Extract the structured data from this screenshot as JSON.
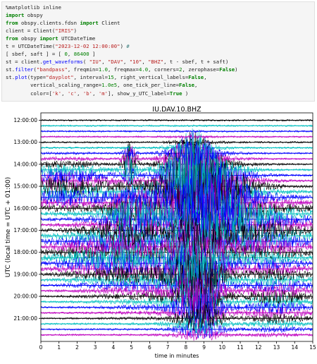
{
  "code_cell": {
    "lines": [
      [
        {
          "t": "plain",
          "v": "%matplotlib inline"
        }
      ],
      [
        {
          "t": "kw",
          "v": "import"
        },
        {
          "t": "plain",
          "v": " obspy"
        }
      ],
      [
        {
          "t": "kw",
          "v": "from"
        },
        {
          "t": "plain",
          "v": " obspy.clients.fdsn "
        },
        {
          "t": "kw",
          "v": "import"
        },
        {
          "t": "plain",
          "v": " Client"
        }
      ],
      [
        {
          "t": "plain",
          "v": "client = Client("
        },
        {
          "t": "str",
          "v": "\"IRIS\""
        },
        {
          "t": "plain",
          "v": ")"
        }
      ],
      [
        {
          "t": "kw",
          "v": "from"
        },
        {
          "t": "plain",
          "v": " obspy "
        },
        {
          "t": "kw",
          "v": "import"
        },
        {
          "t": "plain",
          "v": " UTCDateTime"
        }
      ],
      [
        {
          "t": "plain",
          "v": "t = UTCDateTime("
        },
        {
          "t": "str",
          "v": "\"2023-12-02 12:00:00\""
        },
        {
          "t": "plain",
          "v": ") "
        },
        {
          "t": "com",
          "v": "#"
        }
      ],
      [
        {
          "t": "plain",
          "v": "[ sbef, saft ] = [ "
        },
        {
          "t": "num",
          "v": "0"
        },
        {
          "t": "plain",
          "v": ", "
        },
        {
          "t": "num",
          "v": "86400"
        },
        {
          "t": "plain",
          "v": " ]"
        }
      ],
      [
        {
          "t": "plain",
          "v": "st = client."
        },
        {
          "t": "fn",
          "v": "get_waveforms"
        },
        {
          "t": "plain",
          "v": "( "
        },
        {
          "t": "str",
          "v": "\"IU\""
        },
        {
          "t": "plain",
          "v": ", "
        },
        {
          "t": "str",
          "v": "\"DAV\""
        },
        {
          "t": "plain",
          "v": ", "
        },
        {
          "t": "str",
          "v": "\"10\""
        },
        {
          "t": "plain",
          "v": ", "
        },
        {
          "t": "str",
          "v": "\"BHZ\""
        },
        {
          "t": "plain",
          "v": ", t - sbef, t + saft)"
        }
      ],
      [
        {
          "t": "plain",
          "v": "st."
        },
        {
          "t": "fn",
          "v": "filter"
        },
        {
          "t": "plain",
          "v": "("
        },
        {
          "t": "str",
          "v": "\"bandpass\""
        },
        {
          "t": "plain",
          "v": ", freqmin="
        },
        {
          "t": "num",
          "v": "1.0"
        },
        {
          "t": "plain",
          "v": ", freqmax="
        },
        {
          "t": "num",
          "v": "4.0"
        },
        {
          "t": "plain",
          "v": ", corners="
        },
        {
          "t": "num",
          "v": "2"
        },
        {
          "t": "plain",
          "v": ", zerophase="
        },
        {
          "t": "kw",
          "v": "False"
        },
        {
          "t": "plain",
          "v": ")"
        }
      ],
      [
        {
          "t": "plain",
          "v": "st."
        },
        {
          "t": "fn",
          "v": "plot"
        },
        {
          "t": "plain",
          "v": "(type="
        },
        {
          "t": "str",
          "v": "\"dayplot\""
        },
        {
          "t": "plain",
          "v": ", interval="
        },
        {
          "t": "num",
          "v": "15"
        },
        {
          "t": "plain",
          "v": ", right_vertical_labels="
        },
        {
          "t": "kw",
          "v": "False"
        },
        {
          "t": "plain",
          "v": ","
        }
      ],
      [
        {
          "t": "plain",
          "v": "        vertical_scaling_range="
        },
        {
          "t": "num",
          "v": "1.0e5"
        },
        {
          "t": "plain",
          "v": ", one_tick_per_line="
        },
        {
          "t": "kw",
          "v": "False"
        },
        {
          "t": "plain",
          "v": ","
        }
      ],
      [
        {
          "t": "plain",
          "v": "        color=["
        },
        {
          "t": "str",
          "v": "'k'"
        },
        {
          "t": "plain",
          "v": ", "
        },
        {
          "t": "str",
          "v": "'c'"
        },
        {
          "t": "plain",
          "v": ", "
        },
        {
          "t": "str",
          "v": "'b'"
        },
        {
          "t": "plain",
          "v": ", "
        },
        {
          "t": "str",
          "v": "'m'"
        },
        {
          "t": "plain",
          "v": "], show_y_UTC_label="
        },
        {
          "t": "kw",
          "v": "True"
        },
        {
          "t": "plain",
          "v": " )"
        }
      ]
    ]
  },
  "plot": {
    "title": "IU.DAV.10.BHZ",
    "xlabel": "time in minutes",
    "ylabel": "UTC (local time = UTC + 01:00)",
    "x_ticks": [
      "0",
      "1",
      "2",
      "3",
      "4",
      "5",
      "6",
      "7",
      "8",
      "9",
      "10",
      "11",
      "12",
      "13",
      "14",
      "15"
    ],
    "y_ticks": [
      "12:00:00",
      "13:00:00",
      "14:00:00",
      "15:00:00",
      "16:00:00",
      "17:00:00",
      "18:00:00",
      "19:00:00",
      "20:00:00",
      "21:00:00"
    ],
    "colors": [
      "#000000",
      "#00bfbf",
      "#0000ff",
      "#bf00bf"
    ]
  },
  "chart_data": {
    "type": "line",
    "title": "IU.DAV.10.BHZ",
    "xlabel": "time in minutes",
    "ylabel": "UTC (local time = UTC + 01:00)",
    "xlim": [
      0,
      15
    ],
    "interval_minutes": 15,
    "lines_count": 40,
    "series_colors": [
      "k",
      "c",
      "b",
      "m"
    ],
    "y_tick_labels": [
      "12:00:00",
      "13:00:00",
      "14:00:00",
      "15:00:00",
      "16:00:00",
      "17:00:00",
      "18:00:00",
      "19:00:00",
      "20:00:00",
      "21:00:00"
    ],
    "grid": false
  }
}
